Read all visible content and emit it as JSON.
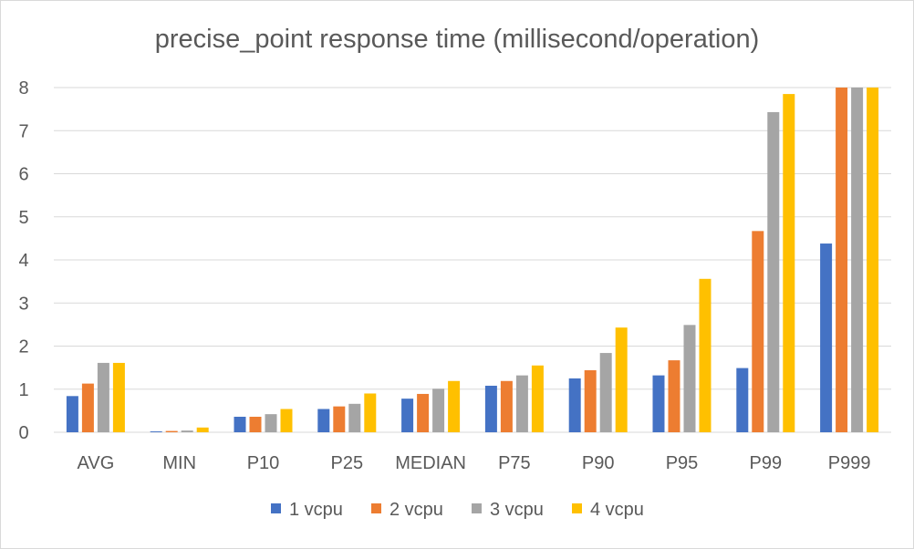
{
  "chart_data": {
    "type": "bar",
    "title": "precise_point response time (millisecond/operation)",
    "xlabel": "",
    "ylabel": "",
    "ylim": [
      0,
      8
    ],
    "yticks": [
      0,
      1,
      2,
      3,
      4,
      5,
      6,
      7,
      8
    ],
    "grid": true,
    "legend_position": "bottom",
    "categories": [
      "AVG",
      "MIN",
      "P10",
      "P25",
      "MEDIAN",
      "P75",
      "P90",
      "P95",
      "P99",
      "P999"
    ],
    "series": [
      {
        "name": "1 vcpu",
        "color": "#4472c4",
        "values": [
          0.84,
          0.02,
          0.36,
          0.54,
          0.78,
          1.08,
          1.25,
          1.32,
          1.49,
          4.38
        ]
      },
      {
        "name": "2 vcpu",
        "color": "#ed7d31",
        "values": [
          1.13,
          0.03,
          0.36,
          0.6,
          0.89,
          1.19,
          1.44,
          1.67,
          4.67,
          8.0
        ]
      },
      {
        "name": "3 vcpu",
        "color": "#a5a5a5",
        "values": [
          1.61,
          0.04,
          0.42,
          0.66,
          1.01,
          1.32,
          1.84,
          2.49,
          7.43,
          8.0
        ]
      },
      {
        "name": "4 vcpu",
        "color": "#ffc000",
        "values": [
          1.61,
          0.11,
          0.54,
          0.9,
          1.19,
          1.55,
          2.43,
          3.56,
          7.85,
          8.0
        ]
      }
    ]
  }
}
